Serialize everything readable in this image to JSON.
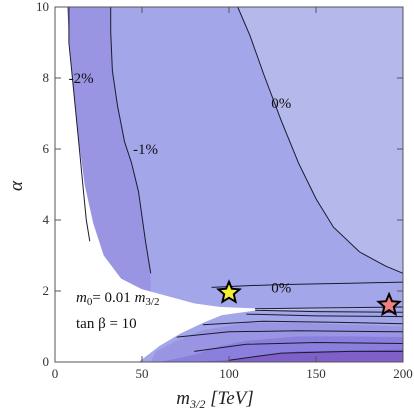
{
  "chart_data": {
    "type": "contour",
    "xlabel": "m3/2 [TeV]",
    "ylabel": "α",
    "xlim": [
      0,
      200
    ],
    "ylim": [
      0,
      10
    ],
    "xticks": [
      0,
      50,
      100,
      150,
      200
    ],
    "yticks": [
      0,
      2,
      4,
      6,
      8,
      10
    ],
    "contour_labels": [
      {
        "text": "-2%",
        "x": 15,
        "y": 8
      },
      {
        "text": "-1%",
        "x": 52,
        "y": 6
      },
      {
        "text": "0%",
        "x": 130,
        "y": 7.3
      },
      {
        "text": "0%",
        "x": 130,
        "y": 2.1
      }
    ],
    "annotations": {
      "m0_line1": "m0= 0.01 m3/2",
      "tanbeta": "tan β = 10"
    },
    "markers": [
      {
        "name": "yellow-star",
        "x": 100,
        "y": 1.95,
        "color": "#f5ee34"
      },
      {
        "name": "red-star",
        "x": 192,
        "y": 1.6,
        "color": "#f08080"
      }
    ],
    "colors": {
      "lightest": "#b4b8ea",
      "light": "#a3a6e8",
      "mid": "#9a95e2",
      "darker": "#8a7fdd",
      "darkest": "#7f60c8",
      "excluded": "#ffffff"
    }
  }
}
